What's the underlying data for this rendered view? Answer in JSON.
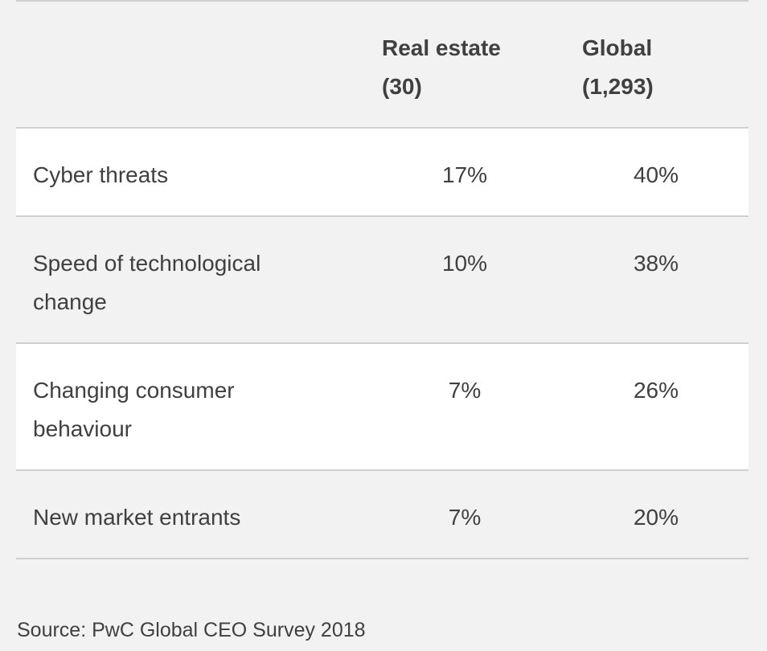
{
  "table": {
    "columns": [
      {
        "title": "Real estate",
        "count": "(30)"
      },
      {
        "title": "Global",
        "count": "(1,293)"
      }
    ],
    "rows": [
      {
        "label": "Cyber threats",
        "real_estate": "17%",
        "global": "40%"
      },
      {
        "label": "Speed of technological change",
        "real_estate": "10%",
        "global": "38%"
      },
      {
        "label": "Changing consumer behaviour",
        "real_estate": "7%",
        "global": "26%"
      },
      {
        "label": "New market entrants",
        "real_estate": "7%",
        "global": "20%"
      }
    ]
  },
  "source": "Source: PwC Global CEO Survey 2018"
}
